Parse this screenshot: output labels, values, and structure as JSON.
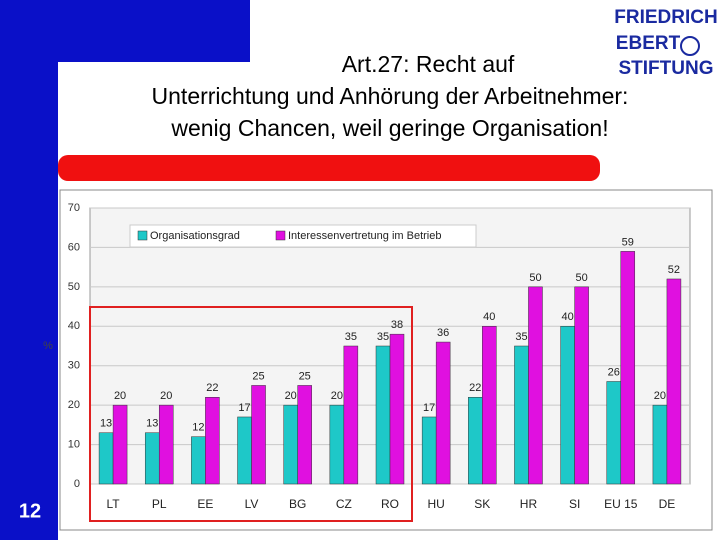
{
  "slide": {
    "title": [
      "Art.27: Recht auf",
      "Unterrichtung und Anhörung der Arbeitnehmer:",
      "wenig Chancen, weil geringe Organisation!"
    ],
    "number": "12",
    "logo": [
      "FRIEDRICH",
      "EBERT",
      "STIFTUNG"
    ]
  },
  "chart_data": {
    "type": "bar",
    "y_label": "%",
    "categories": [
      "LT",
      "PL",
      "EE",
      "LV",
      "BG",
      "CZ",
      "RO",
      "HU",
      "SK",
      "HR",
      "SI",
      "EU 15",
      "DE"
    ],
    "series": [
      {
        "name": "Organisationsgrad",
        "color": "#1ec8c8",
        "values": [
          13,
          13,
          12,
          17,
          20,
          20,
          35,
          17,
          22,
          35,
          40,
          26,
          20
        ]
      },
      {
        "name": "Interessenvertretung im Betrieb",
        "color": "#e010e0",
        "values": [
          20,
          20,
          22,
          25,
          25,
          35,
          38,
          36,
          40,
          50,
          50,
          59,
          52
        ]
      }
    ],
    "ylim": [
      0,
      70
    ],
    "yticks": [
      0,
      10,
      20,
      30,
      40,
      50,
      60,
      70
    ],
    "grid": true,
    "legend": "top"
  }
}
